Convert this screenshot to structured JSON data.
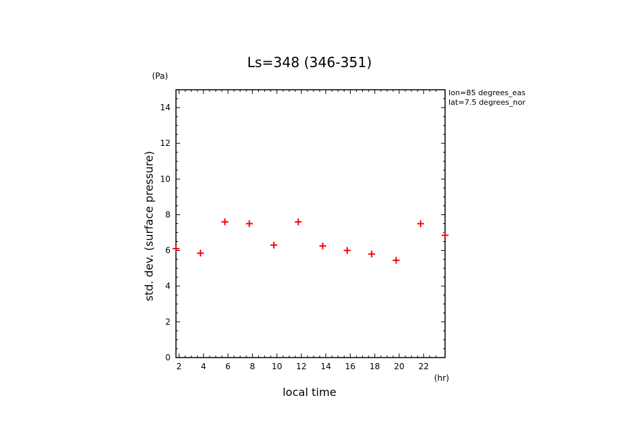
{
  "chart_data": {
    "type": "scatter",
    "title": "Ls=348 (346-351)",
    "xlabel": "local time",
    "ylabel": "std. dev. (surface pressure)",
    "x_unit": "(hr)",
    "y_unit": "(Pa)",
    "xlim": [
      1.75,
      23.75
    ],
    "ylim": [
      0,
      15
    ],
    "x_ticks": [
      2,
      4,
      6,
      8,
      10,
      12,
      14,
      16,
      18,
      20,
      22
    ],
    "y_ticks": [
      0,
      2,
      4,
      6,
      8,
      10,
      12,
      14
    ],
    "annotations": [
      "lon=85 degrees_eas",
      "lat=7.5 degrees_nor"
    ],
    "marker": "+",
    "color": "#ff0000",
    "series": [
      {
        "x": [
          1.75,
          3.75,
          5.75,
          7.75,
          9.75,
          11.75,
          13.75,
          15.75,
          17.75,
          19.75,
          21.75,
          23.75
        ],
        "y": [
          6.1,
          5.85,
          7.6,
          7.5,
          6.3,
          7.6,
          6.25,
          6.0,
          5.8,
          5.45,
          7.5,
          6.85
        ]
      }
    ]
  }
}
